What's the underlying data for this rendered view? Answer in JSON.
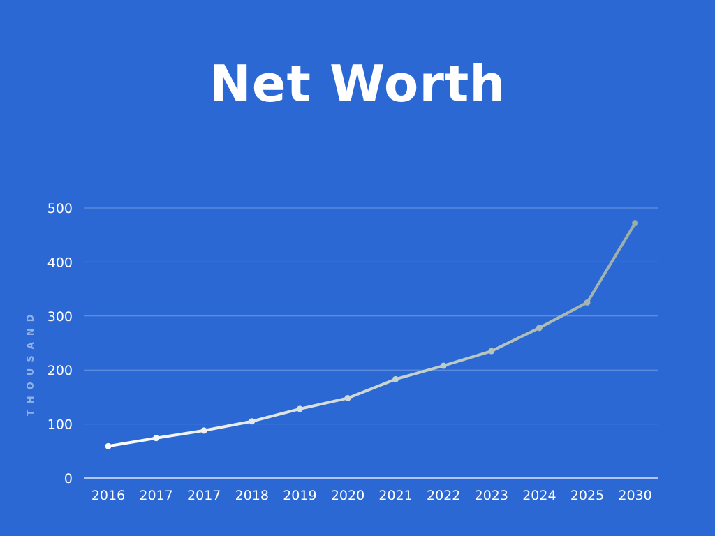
{
  "chart_data": {
    "type": "line",
    "title": "Net Worth",
    "xlabel": "",
    "ylabel": "THOUSAND",
    "categories": [
      "2016",
      "2017",
      "2017",
      "2018",
      "2019",
      "2020",
      "2021",
      "2022",
      "2023",
      "2024",
      "2025",
      "2030"
    ],
    "series": [
      {
        "values": [
          59,
          74,
          88,
          105,
          128,
          148,
          183,
          208,
          235,
          278,
          325,
          472
        ]
      }
    ],
    "ylim": [
      0,
      500
    ],
    "yticks": [
      0,
      100,
      200,
      300,
      400,
      500
    ],
    "grid": true,
    "legend": "none",
    "colors": {
      "background": "#2b68d3",
      "line_start": "#ffffff",
      "line_end": "#9aaea8",
      "grid": "#6f97e0"
    }
  }
}
